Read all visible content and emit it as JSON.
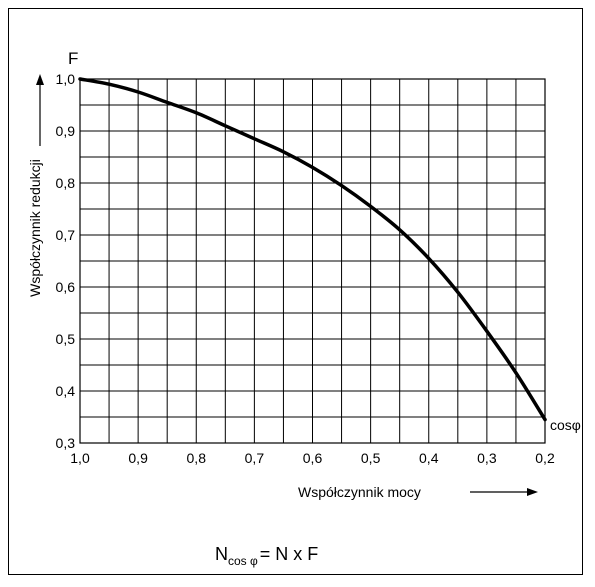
{
  "chart_data": {
    "type": "line",
    "x_axis": {
      "symbol": "cosφ",
      "label": "Współczynnik mocy",
      "ticks": [
        "1,0",
        "0,9",
        "0,8",
        "0,7",
        "0,6",
        "0,5",
        "0,4",
        "0,3",
        "0,2"
      ],
      "xlim": [
        1.0,
        0.2
      ],
      "reversed": true,
      "minor_step": 0.05
    },
    "y_axis": {
      "symbol": "F",
      "label": "Współczynnik redukcji",
      "ticks": [
        "0,3",
        "0,4",
        "0,5",
        "0,6",
        "0,7",
        "0,8",
        "0,9",
        "1,0"
      ],
      "ylim": [
        0.3,
        1.0
      ],
      "minor_step": 0.05
    },
    "grid": true,
    "series": [
      {
        "x": [
          1.0,
          0.95,
          0.9,
          0.85,
          0.8,
          0.75,
          0.7,
          0.65,
          0.6,
          0.55,
          0.5,
          0.45,
          0.4,
          0.35,
          0.3,
          0.25,
          0.2
        ],
        "y": [
          1.0,
          0.99,
          0.975,
          0.955,
          0.935,
          0.91,
          0.885,
          0.86,
          0.83,
          0.795,
          0.755,
          0.71,
          0.655,
          0.59,
          0.515,
          0.435,
          0.345
        ]
      }
    ],
    "formula": {
      "main": "N",
      "subscript": "cos φ",
      "rest": "= N x F"
    }
  }
}
